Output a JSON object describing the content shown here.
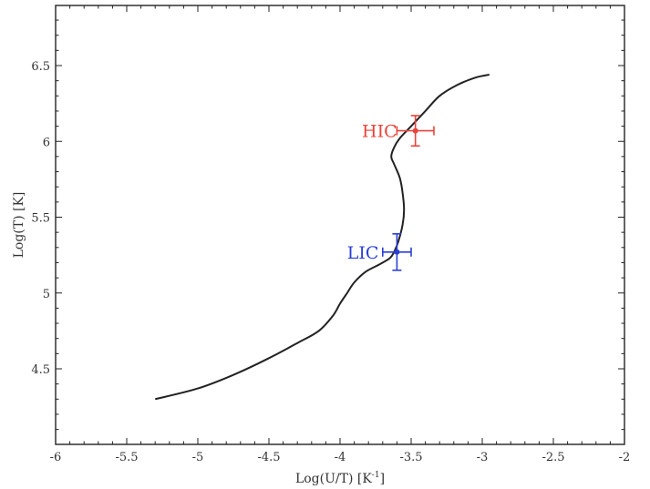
{
  "chart_data": {
    "type": "line",
    "title": "",
    "xlabel": "Log(U/T) [K",
    "xlabel_sup": "-1",
    "xlabel_suffix": "]",
    "ylabel": "Log(T) [K]",
    "xlim": [
      -6,
      -2
    ],
    "ylim": [
      4.0,
      6.5
    ],
    "x_ticks": [
      -6,
      -5.5,
      -5,
      -4.5,
      -4,
      -3.5,
      -3,
      -2.5,
      -2
    ],
    "x_tick_labels": [
      "-6",
      "-5.5",
      "-5",
      "-4.5",
      "-4",
      "-3.5",
      "-3",
      "-2.5",
      "-2"
    ],
    "y_ticks": [
      4.5,
      5,
      5.5,
      6,
      6.5
    ],
    "y_tick_labels": [
      "4.5",
      "5",
      "5.5",
      "6",
      "6.5"
    ],
    "grid": false,
    "series": [
      {
        "color": "#222222",
        "x": [
          -5.3,
          -5.0,
          -4.75,
          -4.5,
          -4.3,
          -4.15,
          -4.05,
          -4.0,
          -3.95,
          -3.9,
          -3.82,
          -3.72,
          -3.65,
          -3.62,
          -3.59,
          -3.56,
          -3.55,
          -3.56,
          -3.58,
          -3.62,
          -3.64,
          -3.62,
          -3.58,
          -3.5,
          -3.4,
          -3.3,
          -3.18,
          -3.05,
          -2.95
        ],
        "y": [
          4.3,
          4.37,
          4.46,
          4.57,
          4.67,
          4.75,
          4.85,
          4.93,
          5.0,
          5.07,
          5.14,
          5.19,
          5.23,
          5.27,
          5.34,
          5.45,
          5.55,
          5.66,
          5.76,
          5.85,
          5.9,
          5.96,
          6.02,
          6.1,
          6.2,
          6.3,
          6.37,
          6.42,
          6.44
        ]
      }
    ],
    "points": [
      {
        "label": "HIC",
        "x": -3.47,
        "y": 6.07,
        "x_err": 0.13,
        "y_err": 0.1,
        "color": "#e8443a"
      },
      {
        "label": "LIC",
        "x": -3.6,
        "y": 5.27,
        "x_err": 0.1,
        "y_err": 0.12,
        "color": "#2a3fd6"
      }
    ]
  }
}
